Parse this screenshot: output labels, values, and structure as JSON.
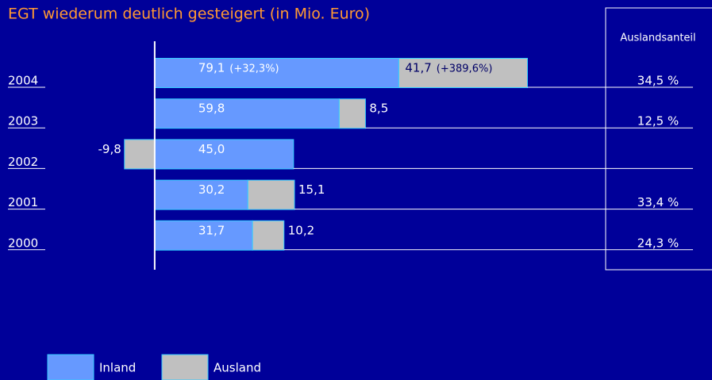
{
  "chart_data": {
    "type": "bar",
    "orientation": "horizontal",
    "stacked": true,
    "title": "EGT wiederum deutlich gesteigert (in Mio. Euro)",
    "categories": [
      "2004",
      "2003",
      "2002",
      "2001",
      "2000"
    ],
    "series": [
      {
        "name": "Inland",
        "color": "#6699ff",
        "values": [
          79.1,
          59.8,
          45.0,
          30.2,
          31.7
        ],
        "value_labels": [
          "79,1",
          "59,8",
          "45,0",
          "30,2",
          "31,7"
        ]
      },
      {
        "name": "Ausland",
        "color": "#c0c0c0",
        "values": [
          41.7,
          8.5,
          -9.8,
          15.1,
          10.2
        ],
        "value_labels": [
          "41,7",
          "8,5",
          "-9,8",
          "15,1",
          "10,2"
        ]
      }
    ],
    "annotations": [
      "(+32,3%)",
      "(+389,6%)"
    ],
    "share_header": "Auslandsanteil",
    "share_values": [
      34.5,
      12.5,
      null,
      33.4,
      24.3
    ],
    "share_labels": [
      "34,5 %",
      "12,5 %",
      null,
      "33,4 %",
      "24,3 %"
    ],
    "xlim": [
      -10,
      168
    ]
  }
}
